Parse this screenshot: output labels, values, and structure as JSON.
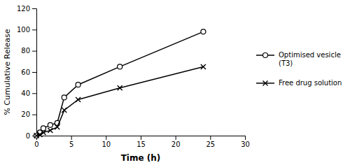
{
  "chart_data": {
    "type": "line",
    "x": [
      0,
      0.5,
      1,
      2,
      3,
      4,
      6,
      12,
      24
    ],
    "series": [
      {
        "name": "Optimised vesicle\n(T3)",
        "color": "#000000",
        "marker": "circle",
        "values": [
          0,
          3,
          7,
          10,
          12,
          36,
          48,
          65,
          98
        ]
      },
      {
        "name": "Free drug solution",
        "color": "#000000",
        "marker": "x",
        "values": [
          0,
          1,
          3,
          5,
          8,
          24,
          34,
          45,
          65
        ]
      }
    ],
    "xlabel": "Time (h)",
    "ylabel": "% Cumulative Release",
    "xlim": [
      0,
      30
    ],
    "ylim": [
      0,
      120
    ],
    "xticks": [
      0,
      5,
      10,
      15,
      20,
      25,
      30
    ],
    "yticks": [
      0,
      20,
      40,
      60,
      80,
      100,
      120
    ],
    "grid": false,
    "legend": "right"
  }
}
